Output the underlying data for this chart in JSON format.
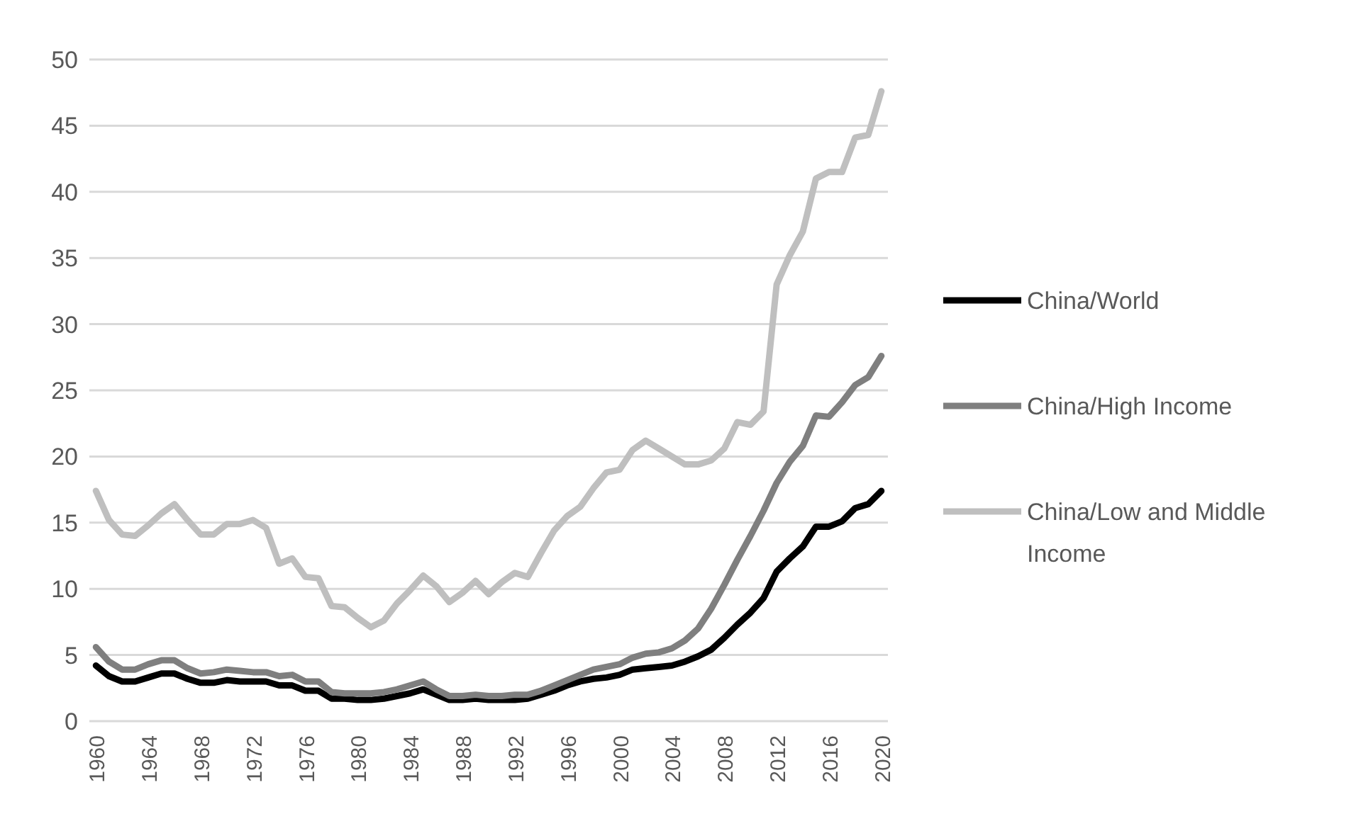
{
  "chart_data": {
    "type": "line",
    "categories": [
      "1960",
      null,
      null,
      null,
      "1964",
      null,
      null,
      null,
      "1968",
      null,
      null,
      null,
      "1972",
      null,
      null,
      null,
      "1976",
      null,
      null,
      null,
      "1980",
      null,
      null,
      null,
      "1984",
      null,
      null,
      null,
      "1988",
      null,
      null,
      null,
      "1992",
      null,
      null,
      null,
      "1996",
      null,
      null,
      null,
      "2000",
      null,
      null,
      null,
      "2004",
      null,
      null,
      null,
      "2008",
      null,
      null,
      null,
      "2012",
      null,
      null,
      null,
      "2016",
      null,
      null,
      null,
      "2020"
    ],
    "series": [
      {
        "name": "China/World",
        "color": "#000000",
        "values": [
          4.2,
          3.4,
          3.0,
          3.0,
          3.3,
          3.6,
          3.6,
          3.2,
          2.9,
          2.9,
          3.1,
          3.0,
          3.0,
          3.0,
          2.7,
          2.7,
          2.3,
          2.3,
          1.7,
          1.7,
          1.6,
          1.6,
          1.7,
          1.9,
          2.1,
          2.4,
          2.0,
          1.6,
          1.6,
          1.7,
          1.6,
          1.6,
          1.6,
          1.7,
          2.0,
          2.3,
          2.7,
          3.0,
          3.2,
          3.3,
          3.5,
          3.9,
          4.0,
          4.1,
          4.2,
          4.5,
          4.9,
          5.4,
          6.3,
          7.3,
          8.2,
          9.3,
          11.3,
          12.3,
          13.2,
          14.7,
          14.7,
          15.1,
          16.1,
          16.4,
          17.4
        ]
      },
      {
        "name": "China/High Income",
        "color": "#7f7f7f",
        "values": [
          5.6,
          4.5,
          3.9,
          3.9,
          4.3,
          4.6,
          4.6,
          4.0,
          3.6,
          3.7,
          3.9,
          3.8,
          3.7,
          3.7,
          3.4,
          3.5,
          3.0,
          3.0,
          2.2,
          2.1,
          2.1,
          2.1,
          2.2,
          2.4,
          2.7,
          3.0,
          2.4,
          1.9,
          1.9,
          2.0,
          1.9,
          1.9,
          2.0,
          2.0,
          2.3,
          2.7,
          3.1,
          3.5,
          3.9,
          4.1,
          4.3,
          4.8,
          5.1,
          5.2,
          5.5,
          6.1,
          7.0,
          8.5,
          10.3,
          12.2,
          14.0,
          15.9,
          18.0,
          19.6,
          20.8,
          23.1,
          23.0,
          24.1,
          25.4,
          26.0,
          27.6
        ]
      },
      {
        "name": "China/Low and Middle Income",
        "color": "#bfbfbf",
        "values": [
          17.4,
          15.2,
          14.1,
          14.0,
          14.8,
          15.7,
          16.4,
          15.2,
          14.1,
          14.1,
          14.9,
          14.9,
          15.2,
          14.6,
          11.9,
          12.3,
          10.9,
          10.8,
          8.7,
          8.6,
          7.8,
          7.1,
          7.6,
          8.9,
          9.9,
          11.0,
          10.2,
          9.0,
          9.7,
          10.6,
          9.6,
          10.5,
          11.2,
          10.9,
          12.7,
          14.4,
          15.5,
          16.2,
          17.6,
          18.8,
          19.0,
          20.5,
          21.2,
          20.6,
          20.0,
          19.4,
          19.4,
          19.7,
          20.6,
          22.6,
          22.4,
          23.4,
          33.0,
          35.2,
          37.0,
          41.0,
          41.5,
          41.5,
          44.1,
          44.3,
          47.6
        ]
      }
    ],
    "ylim": [
      0,
      50
    ],
    "yticks": [
      0,
      5,
      10,
      15,
      20,
      25,
      30,
      35,
      40,
      45,
      50
    ],
    "grid": "y",
    "legend": "right",
    "marker": "none",
    "line_style": "solid"
  }
}
